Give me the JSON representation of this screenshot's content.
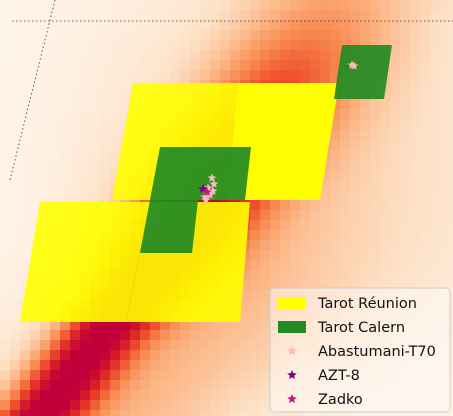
{
  "chart_data": {
    "type": "heatmap",
    "title": "",
    "xlabel": "",
    "ylabel": "",
    "grid": false,
    "legend_placement": "bottom-right",
    "colormap": [
      "#fff5eb",
      "#fde0c5",
      "#fcb98a",
      "#f88a4e",
      "#ee4a2a",
      "#d51a2a",
      "#c0003a"
    ],
    "series": [
      {
        "name": "Tarot Réunion",
        "kind": "tiles",
        "color": "#ffff00",
        "tile_count": 4
      },
      {
        "name": "Tarot Calern",
        "kind": "tiles",
        "color": "#228b22",
        "tile_count": 3
      },
      {
        "name": "Abastumani-T70",
        "kind": "points",
        "marker": "star",
        "color": "#ffb6c1"
      },
      {
        "name": "AZT-8",
        "kind": "points",
        "marker": "star",
        "color": "#800080"
      },
      {
        "name": "Zadko",
        "kind": "points",
        "marker": "star",
        "color": "#c71585"
      }
    ]
  }
}
